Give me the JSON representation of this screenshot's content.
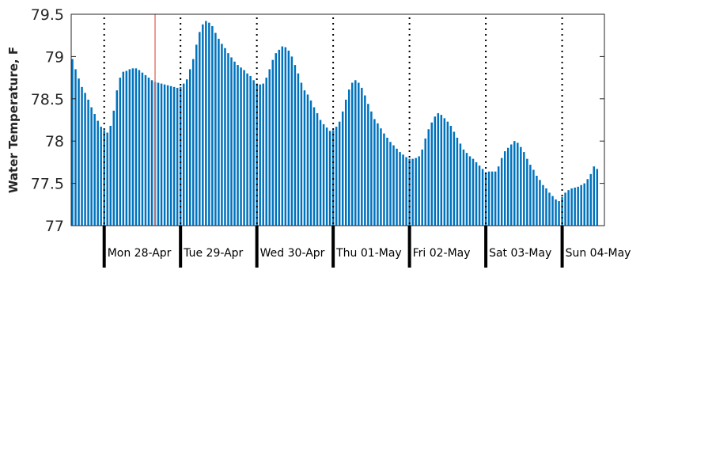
{
  "chart_data": {
    "type": "bar",
    "ylabel": "Water Temperature, F",
    "ylim": [
      77,
      79.5
    ],
    "y_ticks": [
      "77",
      "77.5",
      "78",
      "78.5",
      "79",
      "79.5"
    ],
    "grid": false,
    "interval_hours": 1,
    "series_color": "#0072bd",
    "day_labels": [
      "Mon 28-Apr",
      "Tue 29-Apr",
      "Wed 30-Apr",
      "Thu 01-May",
      "Fri 02-May",
      "Sat 03-May",
      "Sun 04-May"
    ],
    "midnight_hour_index": [
      10,
      34,
      58,
      82,
      106,
      130,
      154
    ],
    "current_time_marker": {
      "hour_index": 26,
      "color": "#e8796f"
    },
    "values": [
      78.97,
      78.85,
      78.74,
      78.64,
      78.57,
      78.49,
      78.4,
      78.32,
      78.24,
      78.17,
      78.13,
      78.1,
      78.18,
      78.36,
      78.6,
      78.75,
      78.82,
      78.83,
      78.85,
      78.86,
      78.86,
      78.84,
      78.81,
      78.78,
      78.75,
      78.72,
      78.7,
      78.69,
      78.68,
      78.67,
      78.66,
      78.65,
      78.64,
      78.63,
      78.64,
      78.68,
      78.73,
      78.85,
      78.97,
      79.14,
      79.29,
      79.38,
      79.42,
      79.4,
      79.36,
      79.28,
      79.21,
      79.15,
      79.1,
      79.04,
      78.99,
      78.94,
      78.9,
      78.87,
      78.84,
      78.8,
      78.77,
      78.72,
      78.68,
      78.67,
      78.68,
      78.75,
      78.85,
      78.96,
      79.04,
      79.08,
      79.12,
      79.11,
      79.07,
      79.0,
      78.9,
      78.8,
      78.69,
      78.6,
      78.55,
      78.48,
      78.4,
      78.33,
      78.25,
      78.2,
      78.16,
      78.12,
      78.13,
      78.17,
      78.23,
      78.35,
      78.49,
      78.61,
      78.69,
      78.72,
      78.69,
      78.63,
      78.54,
      78.44,
      78.35,
      78.26,
      78.21,
      78.15,
      78.09,
      78.04,
      77.99,
      77.95,
      77.91,
      77.87,
      77.84,
      77.81,
      77.79,
      77.79,
      77.8,
      77.82,
      77.9,
      78.03,
      78.14,
      78.22,
      78.29,
      78.33,
      78.31,
      78.27,
      78.23,
      78.18,
      78.11,
      78.04,
      77.97,
      77.9,
      77.86,
      77.82,
      77.79,
      77.75,
      77.71,
      77.67,
      77.63,
      77.64,
      77.64,
      77.64,
      77.7,
      77.8,
      77.88,
      77.92,
      77.96,
      78.0,
      77.98,
      77.93,
      77.87,
      77.79,
      77.72,
      77.66,
      77.59,
      77.54,
      77.48,
      77.44,
      77.39,
      77.35,
      77.31,
      77.29,
      77.34,
      77.39,
      77.42,
      77.44,
      77.45,
      77.46,
      77.48,
      77.5,
      77.55,
      77.61,
      77.7,
      77.67
    ]
  }
}
